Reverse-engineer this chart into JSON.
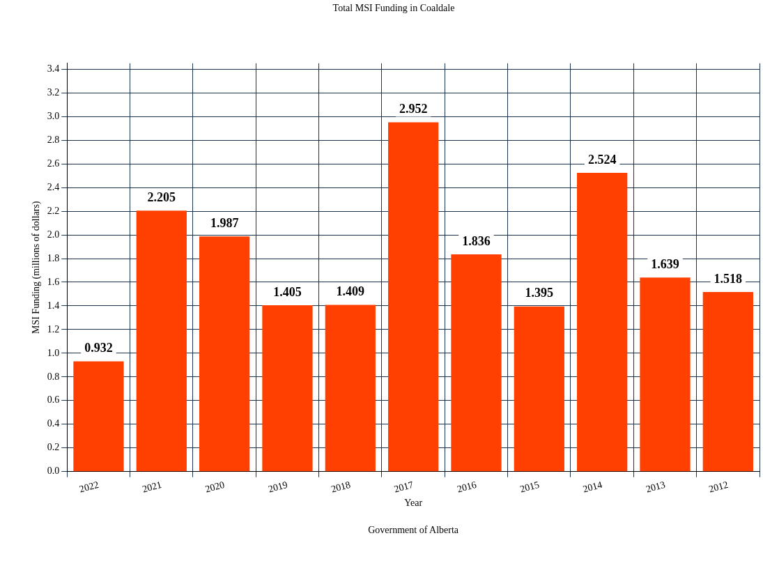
{
  "chart_data": {
    "type": "bar",
    "title": "Total MSI Funding in Coaldale",
    "xlabel": "Year",
    "ylabel": "MSI Funding (millions of dollars)",
    "categories": [
      "2022",
      "2021",
      "2020",
      "2019",
      "2018",
      "2017",
      "2016",
      "2015",
      "2014",
      "2013",
      "2012"
    ],
    "values": [
      0.932,
      2.205,
      1.987,
      1.405,
      1.409,
      2.952,
      1.836,
      1.395,
      2.524,
      1.639,
      1.518
    ],
    "color": "#ff4000",
    "ylim": [
      0,
      3.45
    ],
    "yticks": [
      {
        "value": 0,
        "label": "0.0"
      },
      0.2,
      0.4,
      0.6,
      0.8,
      {
        "value": 1,
        "label": "1.0"
      },
      1.2,
      1.4,
      1.6,
      1.8,
      {
        "value": 2,
        "label": "2.0"
      },
      2.2,
      2.4,
      2.6,
      2.8,
      {
        "value": 3,
        "label": "3.0"
      },
      3.2,
      3.4
    ],
    "grid": true,
    "data_labels": true,
    "annotations": [
      "Government of Alberta"
    ]
  }
}
